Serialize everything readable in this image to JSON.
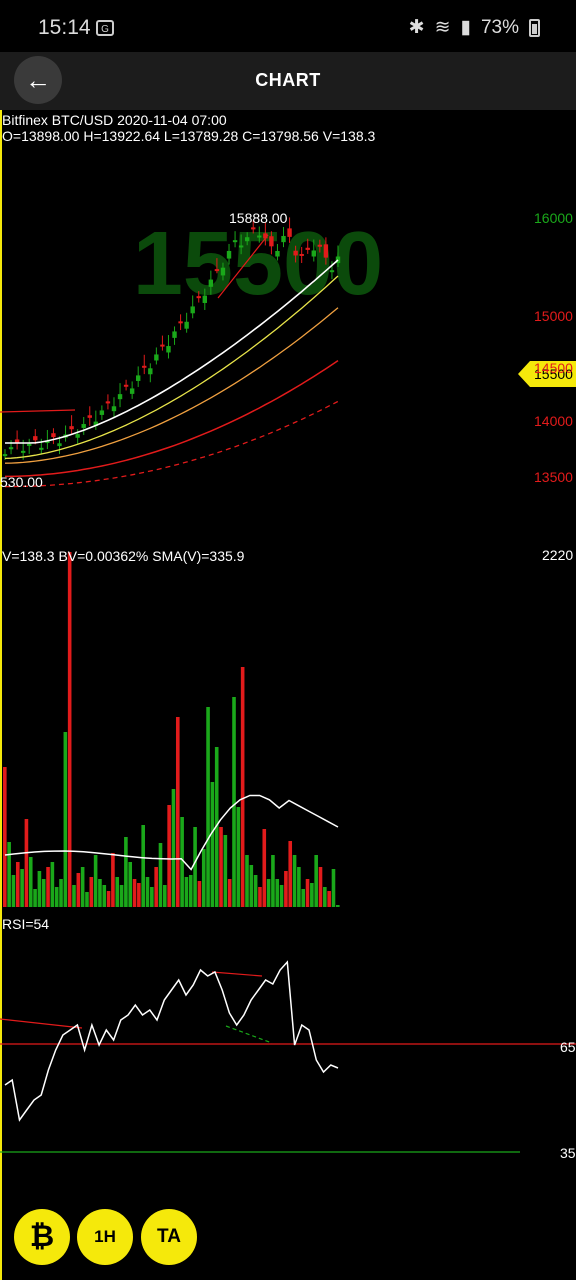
{
  "status_bar": {
    "time": "15:14",
    "battery": "73%"
  },
  "header": {
    "title": "CHART"
  },
  "chart": {
    "symbol_line": "Bitfinex BTC/USD 2020-11-04 07:00",
    "ohlc_line": "O=13898.00 H=13922.64 L=13789.28 C=13798.56 V=138.3",
    "watermark": "15500",
    "high_label": "15888.00",
    "low_label": "530.00",
    "price_axis": [
      "16000",
      "15000",
      "14500",
      "14000",
      "13500"
    ],
    "current_price_tag": "15500",
    "volume_info": "V=138.3 BV=0.00362% SMA(V)=335.9",
    "volume_axis_max": "2220",
    "rsi_info": "RSI=54",
    "rsi_levels": [
      "65",
      "35"
    ]
  },
  "fabs": {
    "crypto": "₿",
    "timeframe": "1H",
    "ta": "TA"
  },
  "colors": {
    "up": "#1aa81a",
    "down": "#e21b1b",
    "accent": "#f5e90b",
    "ema_white": "#ffffff",
    "ema_yellow": "#e8e44a",
    "ema_orange": "#f0a040"
  },
  "icons": {
    "back": "arrow-left-icon",
    "bitcoin": "bitcoin-icon"
  }
}
